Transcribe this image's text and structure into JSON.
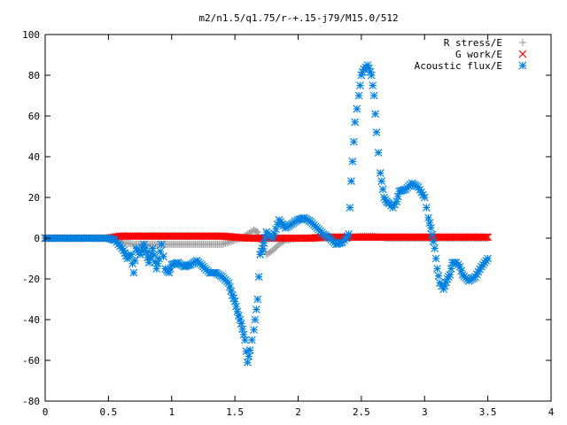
{
  "chart_data": {
    "type": "scatter",
    "title": "m2/n1.5/q1.75/r-+.15-j79/M15.0/512",
    "xlabel": "",
    "ylabel": "",
    "xlim": [
      0,
      4
    ],
    "ylim": [
      -80,
      100
    ],
    "xticks": [
      0,
      0.5,
      1,
      1.5,
      2,
      2.5,
      3,
      3.5,
      4
    ],
    "xtick_labels": [
      "0",
      "0.5",
      "1",
      "1.5",
      "2",
      "2.5",
      "3",
      "3.5",
      "4"
    ],
    "yticks": [
      -80,
      -60,
      -40,
      -20,
      0,
      20,
      40,
      60,
      80,
      100
    ],
    "ytick_labels": [
      "-80",
      "-60",
      "-40",
      "-20",
      "0",
      "20",
      "40",
      "60",
      "80",
      "100"
    ],
    "grid": false,
    "legend_position": "top-right",
    "series": [
      {
        "name": "R stress/E",
        "marker": "plus",
        "color": "#a0a0a0",
        "x": [
          0,
          0.1,
          0.2,
          0.3,
          0.4,
          0.5,
          0.55,
          0.6,
          0.7,
          0.8,
          0.9,
          1.0,
          1.1,
          1.2,
          1.3,
          1.4,
          1.45,
          1.5,
          1.55,
          1.6,
          1.65,
          1.68,
          1.7,
          1.72,
          1.75,
          1.8,
          1.85,
          1.9,
          2.0,
          2.1,
          2.2,
          2.3,
          2.4,
          2.5,
          2.6,
          2.7,
          2.8,
          2.9,
          3.0,
          3.1,
          3.2,
          3.3,
          3.4,
          3.5
        ],
        "y": [
          0,
          0,
          0,
          0,
          0,
          0,
          -1,
          -2,
          -3,
          -3,
          -3,
          -3,
          -3,
          -3,
          -3,
          -3,
          -2,
          -1,
          0,
          2,
          4,
          3,
          0,
          -4,
          -8,
          -6,
          -3,
          -1,
          0,
          0,
          0,
          0,
          0,
          1,
          1,
          0,
          0,
          0,
          0,
          0,
          0,
          0,
          0,
          0
        ]
      },
      {
        "name": "G work/E",
        "marker": "cross",
        "color": "#ff0000",
        "x": [
          0,
          0.1,
          0.2,
          0.3,
          0.4,
          0.5,
          0.55,
          0.6,
          0.7,
          0.8,
          0.9,
          1.0,
          1.1,
          1.2,
          1.3,
          1.4,
          1.5,
          1.6,
          1.7,
          1.8,
          1.9,
          2.0,
          2.1,
          2.2,
          2.3,
          2.4,
          2.5,
          2.6,
          2.7,
          2.8,
          2.9,
          3.0,
          3.1,
          3.2,
          3.3,
          3.4,
          3.5
        ],
        "y": [
          0,
          0,
          0,
          0,
          0,
          0,
          0.5,
          1,
          1,
          1,
          1,
          1,
          1,
          1,
          1,
          1,
          0.5,
          0,
          0,
          0,
          0,
          0,
          0,
          0.5,
          0.5,
          0.5,
          0.5,
          0.5,
          0.5,
          0.5,
          0.5,
          0.5,
          0.5,
          0.5,
          0.5,
          0.5,
          0.5
        ]
      },
      {
        "name": "Acoustic flux/E",
        "marker": "star",
        "color": "#0080e0",
        "x": [
          0,
          0.1,
          0.2,
          0.3,
          0.4,
          0.5,
          0.55,
          0.58,
          0.62,
          0.65,
          0.68,
          0.7,
          0.72,
          0.75,
          0.78,
          0.8,
          0.82,
          0.85,
          0.88,
          0.9,
          0.92,
          0.95,
          0.98,
          1.0,
          1.05,
          1.1,
          1.15,
          1.2,
          1.25,
          1.3,
          1.35,
          1.4,
          1.45,
          1.48,
          1.5,
          1.52,
          1.55,
          1.58,
          1.6,
          1.62,
          1.65,
          1.68,
          1.7,
          1.72,
          1.75,
          1.8,
          1.85,
          1.9,
          1.95,
          2.0,
          2.05,
          2.1,
          2.15,
          2.2,
          2.25,
          2.3,
          2.35,
          2.38,
          2.4,
          2.42,
          2.45,
          2.48,
          2.5,
          2.52,
          2.55,
          2.58,
          2.6,
          2.62,
          2.65,
          2.68,
          2.7,
          2.72,
          2.75,
          2.78,
          2.8,
          2.85,
          2.9,
          2.95,
          3.0,
          3.03,
          3.05,
          3.08,
          3.1,
          3.12,
          3.15,
          3.18,
          3.2,
          3.22,
          3.25,
          3.28,
          3.3,
          3.35,
          3.4,
          3.45,
          3.5
        ],
        "y": [
          0,
          0,
          0,
          0,
          0,
          0,
          -1,
          -3,
          -6,
          -10,
          -8,
          -17,
          -5,
          -8,
          -3,
          -7,
          -12,
          -5,
          -15,
          -10,
          -3,
          -15,
          -17,
          -13,
          -12,
          -14,
          -13,
          -11,
          -14,
          -17,
          -17,
          -19,
          -22,
          -28,
          -31,
          -36,
          -42,
          -50,
          -61,
          -55,
          -45,
          -30,
          -8,
          -5,
          3,
          0,
          9,
          5,
          7,
          9,
          10,
          8,
          5,
          2,
          0,
          -3,
          -2,
          0,
          2,
          28,
          57,
          70,
          80,
          83,
          85,
          80,
          70,
          52,
          32,
          20,
          18,
          17,
          15,
          18,
          23,
          24,
          27,
          25,
          20,
          10,
          5,
          -5,
          -15,
          -22,
          -25,
          -20,
          -18,
          -12,
          -12,
          -14,
          -18,
          -21,
          -19,
          -14,
          -10
        ]
      }
    ]
  }
}
